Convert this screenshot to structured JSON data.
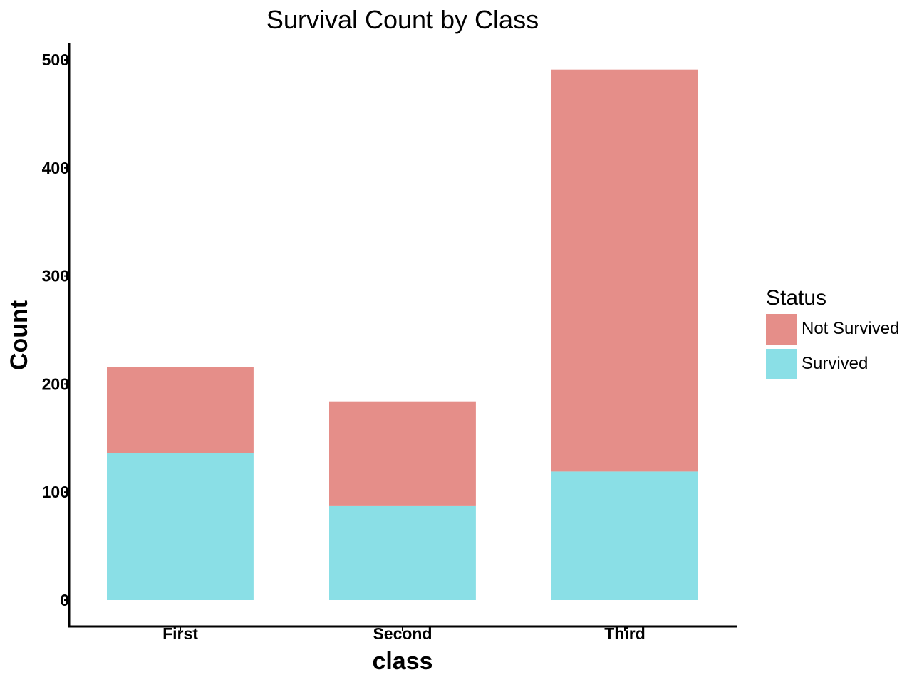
{
  "chart_data": {
    "type": "bar",
    "stacked": true,
    "title": "Survival Count by Class",
    "xlabel": "class",
    "ylabel": "Count",
    "categories": [
      "First",
      "Second",
      "Third"
    ],
    "series": [
      {
        "name": "Survived",
        "values": [
          136,
          87,
          119
        ],
        "color": "#8ADFE6"
      },
      {
        "name": "Not Survived",
        "values": [
          80,
          97,
          372
        ],
        "color": "#E58E89"
      }
    ],
    "ylim": [
      -24,
      515
    ],
    "yticks": [
      0,
      100,
      200,
      300,
      400,
      500
    ],
    "grid": false,
    "legend": {
      "title": "Status",
      "placement": "right",
      "entries": [
        "Not Survived",
        "Survived"
      ]
    }
  }
}
